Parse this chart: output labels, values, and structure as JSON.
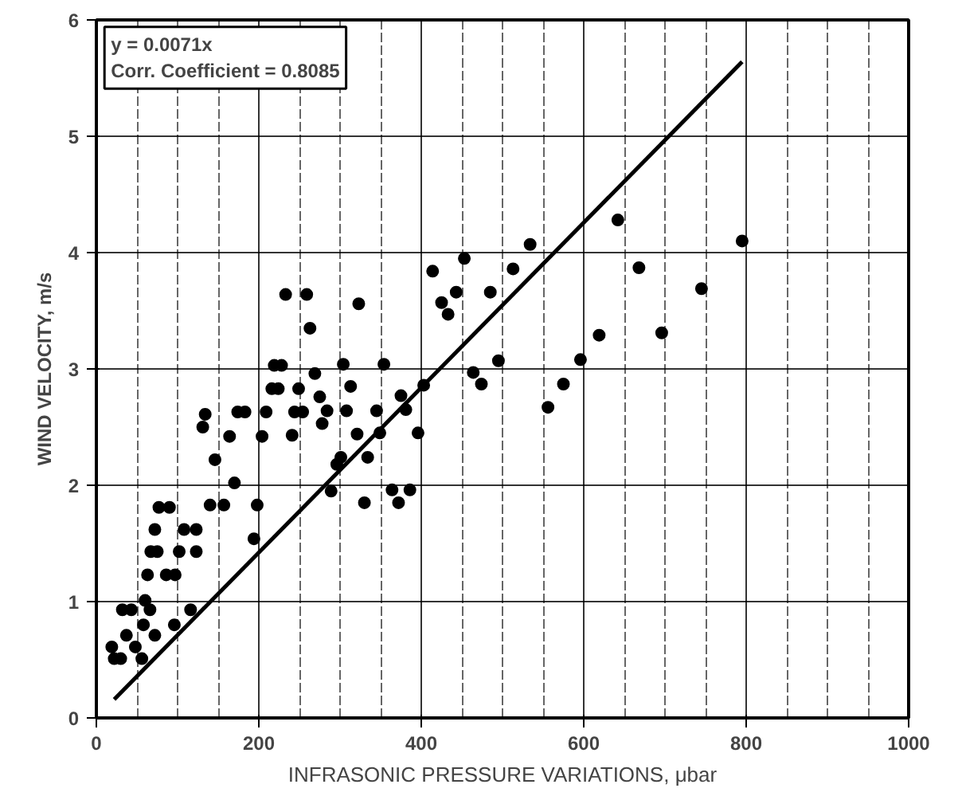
{
  "chart_data": {
    "type": "scatter",
    "xlabel": "INFRASONIC PRESSURE VARIATIONS, μbar",
    "ylabel": "WIND VELOCITY, m/s",
    "annotations": [
      "y = 0.0071x",
      "Corr. Coefficient = 0.8085"
    ],
    "xlim": [
      0,
      1000
    ],
    "ylim": [
      0,
      6
    ],
    "xticks": [
      0,
      200,
      400,
      600,
      800,
      1000
    ],
    "yticks": [
      0,
      1,
      2,
      3,
      4,
      5,
      6
    ],
    "grid": true,
    "series": [
      {
        "color": "#000000",
        "marker": "circle",
        "x": [
          19,
          22,
          30,
          32,
          43,
          37,
          48,
          56,
          58,
          60,
          66,
          72,
          63,
          67,
          75,
          72,
          77,
          90,
          86,
          97,
          96,
          102,
          108,
          123,
          123,
          116,
          131,
          134,
          146,
          140,
          157,
          164,
          170,
          174,
          183,
          194,
          198,
          204,
          209,
          216,
          224,
          219,
          228,
          233,
          241,
          244,
          254,
          249,
          259,
          263,
          269,
          275,
          278,
          284,
          289,
          296,
          301,
          304,
          308,
          313,
          323,
          321,
          330,
          334,
          345,
          349,
          354,
          364,
          372,
          375,
          381,
          386,
          396,
          403,
          414,
          425,
          433,
          443,
          453,
          464,
          474,
          485,
          495,
          513,
          534,
          556,
          575,
          596,
          619,
          642,
          668,
          696,
          745,
          795
        ],
        "values": [
          0.61,
          0.51,
          0.51,
          0.93,
          0.93,
          0.71,
          0.61,
          0.51,
          0.8,
          1.01,
          0.93,
          0.71,
          1.23,
          1.43,
          1.43,
          1.62,
          1.81,
          1.81,
          1.23,
          1.23,
          0.8,
          1.43,
          1.62,
          1.62,
          1.43,
          0.93,
          2.5,
          2.61,
          2.22,
          1.83,
          1.83,
          2.42,
          2.02,
          2.63,
          2.63,
          1.54,
          1.83,
          2.42,
          2.63,
          2.83,
          2.83,
          3.03,
          3.03,
          3.64,
          2.43,
          2.63,
          2.63,
          2.83,
          3.64,
          3.35,
          2.96,
          2.76,
          2.53,
          2.64,
          1.95,
          2.18,
          2.24,
          3.04,
          2.64,
          2.85,
          3.56,
          2.44,
          1.85,
          2.24,
          2.64,
          2.45,
          3.04,
          1.96,
          1.85,
          2.77,
          2.65,
          1.96,
          2.45,
          2.86,
          3.84,
          3.57,
          3.47,
          3.66,
          3.95,
          2.97,
          2.87,
          3.66,
          3.07,
          3.86,
          4.07,
          2.67,
          2.87,
          3.08,
          3.29,
          4.28,
          3.87,
          3.31,
          3.69,
          4.1
        ]
      },
      {
        "type": "line",
        "color": "#000000",
        "x": [
          22,
          795
        ],
        "values": [
          0.16,
          5.64
        ]
      }
    ]
  }
}
